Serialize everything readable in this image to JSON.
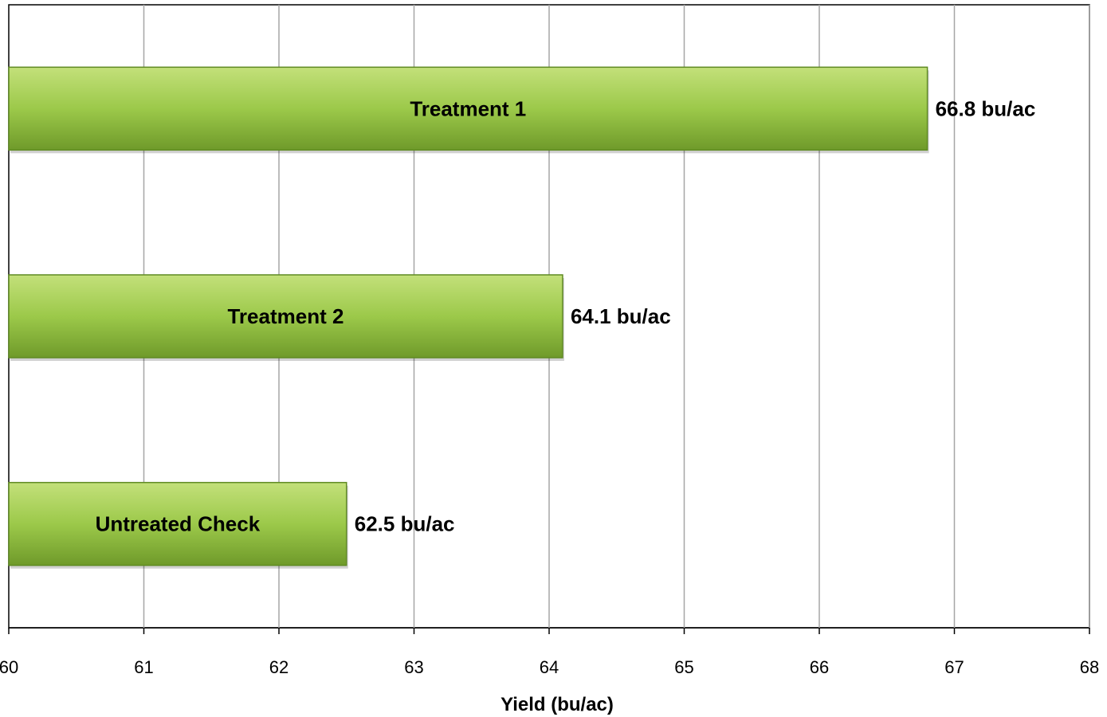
{
  "chart_data": {
    "type": "bar",
    "orientation": "horizontal",
    "categories": [
      "Treatment 1",
      "Treatment 2",
      "Untreated Check"
    ],
    "values": [
      66.8,
      64.1,
      62.5
    ],
    "data_labels": [
      "66.8 bu/ac",
      "64.1 bu/ac",
      "62.5 bu/ac"
    ],
    "xlabel": "Yield (bu/ac)",
    "ylabel": "",
    "xlim": [
      60,
      68
    ],
    "xticks": [
      "60",
      "61",
      "62",
      "63",
      "64",
      "65",
      "66",
      "67",
      "68"
    ],
    "grid": "vertical",
    "legend": "none",
    "colors": {
      "bar_fill_top": "#c3e07a",
      "bar_fill_mid": "#9cc94a",
      "bar_fill_bottom": "#6f9a2a",
      "bar_stroke": "#5f8a22",
      "grid": "#a6a6a6",
      "axis": "#000000"
    }
  }
}
